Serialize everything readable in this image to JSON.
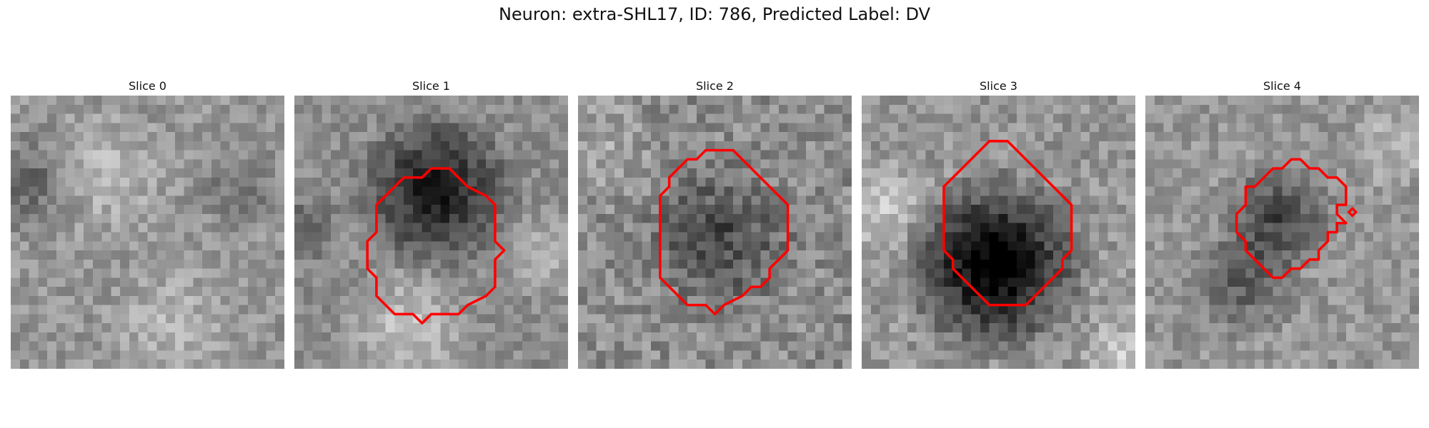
{
  "figure": {
    "title": "Neuron: extra-SHL17, ID: 786, Predicted Label: DV"
  },
  "colors": {
    "contour": "#ff0000",
    "background": "#ffffff"
  },
  "panels": [
    {
      "title": "Slice 0",
      "has_contour": false
    },
    {
      "title": "Slice 1",
      "has_contour": true
    },
    {
      "title": "Slice 2",
      "has_contour": true
    },
    {
      "title": "Slice 3",
      "has_contour": true
    },
    {
      "title": "Slice 4",
      "has_contour": true
    }
  ]
}
